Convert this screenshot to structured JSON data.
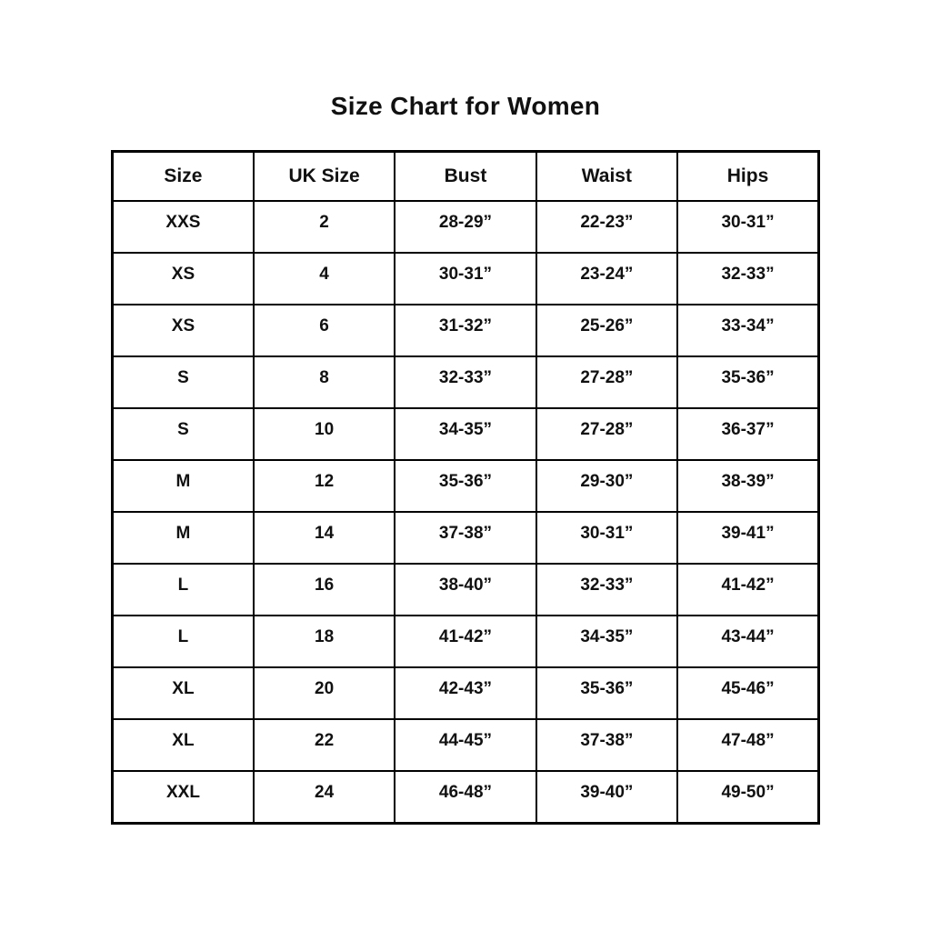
{
  "title": "Size Chart for Women",
  "colors": {
    "background": "#ffffff",
    "border": "#000000",
    "text": "#111111"
  },
  "chart_data": {
    "type": "table",
    "title": "Size Chart for Women",
    "columns": [
      "Size",
      "UK Size",
      "Bust",
      "Waist",
      "Hips"
    ],
    "rows": [
      [
        "XXS",
        "2",
        "28-29”",
        "22-23”",
        "30-31”"
      ],
      [
        "XS",
        "4",
        "30-31”",
        "23-24”",
        "32-33”"
      ],
      [
        "XS",
        "6",
        "31-32”",
        "25-26”",
        "33-34”"
      ],
      [
        "S",
        "8",
        "32-33”",
        "27-28”",
        "35-36”"
      ],
      [
        "S",
        "10",
        "34-35”",
        "27-28”",
        "36-37”"
      ],
      [
        "M",
        "12",
        "35-36”",
        "29-30”",
        "38-39”"
      ],
      [
        "M",
        "14",
        "37-38”",
        "30-31”",
        "39-41”"
      ],
      [
        "L",
        "16",
        "38-40”",
        "32-33”",
        "41-42”"
      ],
      [
        "L",
        "18",
        "41-42”",
        "34-35”",
        "43-44”"
      ],
      [
        "XL",
        "20",
        "42-43”",
        "35-36”",
        "45-46”"
      ],
      [
        "XL",
        "22",
        "44-45”",
        "37-38”",
        "47-48”"
      ],
      [
        "XXL",
        "24",
        "46-48”",
        "39-40”",
        "49-50”"
      ]
    ]
  }
}
